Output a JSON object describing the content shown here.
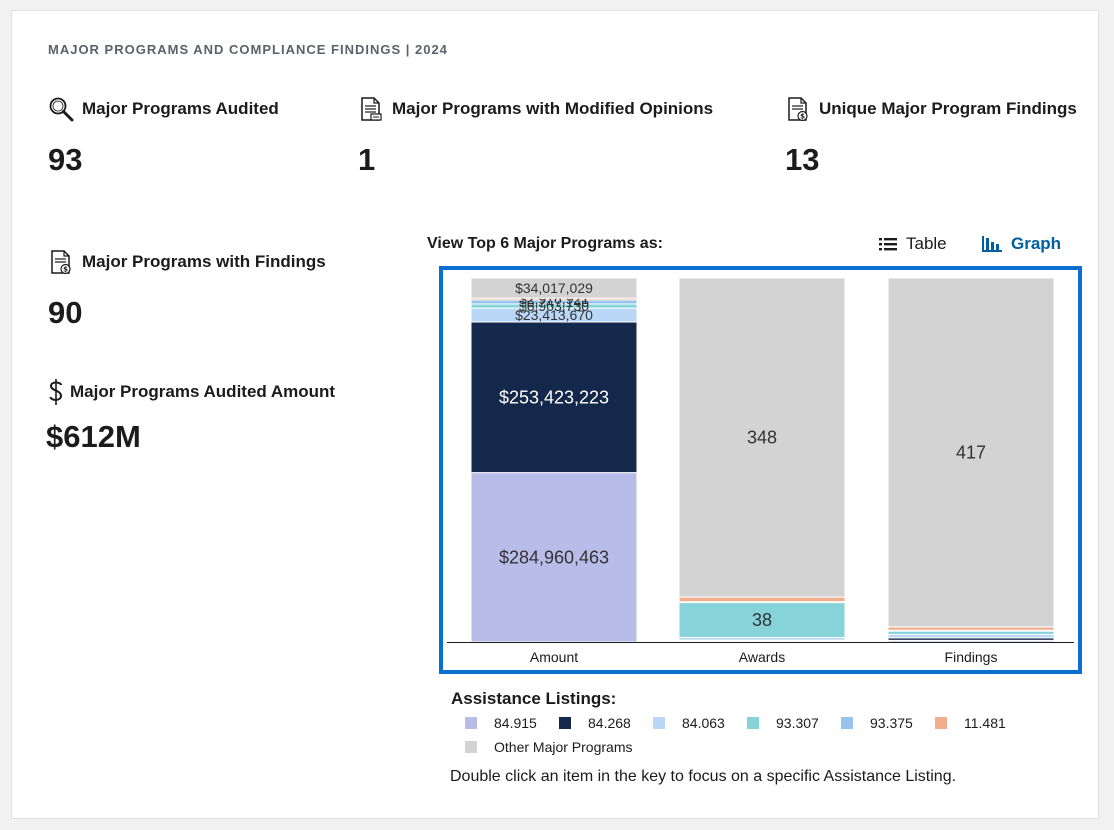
{
  "header": {
    "title": "MAJOR PROGRAMS AND COMPLIANCE FINDINGS | 2024"
  },
  "metrics": {
    "audited": {
      "label": "Major Programs Audited",
      "value": "93",
      "icon": "magnifier-icon"
    },
    "modified": {
      "label": "Major Programs with Modified Opinions",
      "value": "1",
      "icon": "document-icon"
    },
    "unique": {
      "label": "Unique Major Program Findings",
      "value": "13",
      "icon": "document-dollar-icon"
    },
    "findings": {
      "label": "Major Programs with Findings",
      "value": "90",
      "icon": "document-dollar-icon"
    },
    "amount": {
      "label": "Major Programs Audited Amount",
      "value": "$612M",
      "icon": "dollar-icon"
    }
  },
  "view": {
    "label": "View Top 6 Major Programs as:",
    "table_label": "Table",
    "graph_label": "Graph",
    "selected": "Graph"
  },
  "legend": {
    "title": "Assistance Listings:",
    "hint": "Double click an item in the key to focus on a specific Assistance Listing."
  },
  "colors": {
    "84.915": "#b8bce8",
    "84.268": "#14284b",
    "84.063": "#b9d8f7",
    "93.307": "#86d3d9",
    "93.375": "#97c4ec",
    "11.481": "#f2ad8d",
    "other": "#d3d3d3",
    "accent": "#005ea2",
    "frame": "#0b6fd1"
  },
  "chart_data": {
    "type": "bar",
    "stacked": "percent",
    "categories": [
      "Amount",
      "Awards",
      "Findings"
    ],
    "series": [
      {
        "name": "84.915",
        "values": [
          284960463,
          1,
          2
        ],
        "labels": [
          "$284,960,463",
          "",
          ""
        ]
      },
      {
        "name": "84.268",
        "values": [
          253423223,
          1,
          3
        ],
        "labels": [
          "$253,423,223",
          "",
          ""
        ]
      },
      {
        "name": "84.063",
        "values": [
          23413670,
          3,
          4
        ],
        "labels": [
          "$23,413,670",
          "",
          ""
        ]
      },
      {
        "name": "93.307",
        "values": [
          6903730,
          38,
          4
        ],
        "labels": [
          "$6,903,730",
          "38",
          ""
        ]
      },
      {
        "name": "93.375",
        "values": [
          6747146,
          1,
          1
        ],
        "labels": [
          "$6,747,146",
          "",
          ""
        ]
      },
      {
        "name": "11.481",
        "values": [
          2976921,
          5,
          4
        ],
        "labels": [
          "$2,976,921",
          "",
          ""
        ]
      },
      {
        "name": "Other Major Programs",
        "values": [
          34017029,
          348,
          417
        ],
        "labels": [
          "$34,017,029",
          "348",
          "417"
        ]
      }
    ],
    "legend_position": "bottom",
    "grid": false
  }
}
